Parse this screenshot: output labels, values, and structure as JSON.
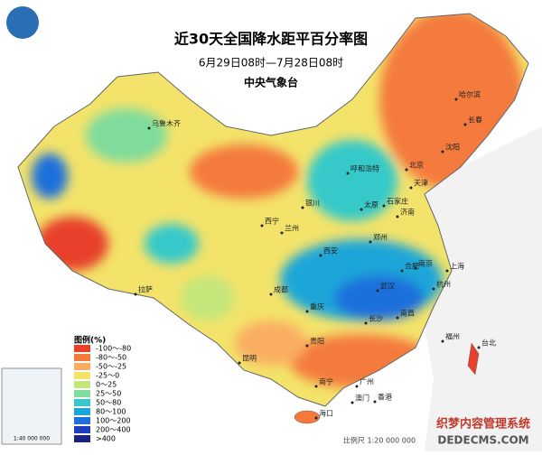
{
  "header": {
    "title": "近30天全国降水距平百分率图",
    "period": "6月29日08时—7月28日08时",
    "issuer": "中央气象台"
  },
  "legend": {
    "title": "图例(%)",
    "items": [
      {
        "label": "-100～-80",
        "color": "#e8402a"
      },
      {
        "label": "-80～-50",
        "color": "#f47a3c"
      },
      {
        "label": "-50～-25",
        "color": "#f9ae62"
      },
      {
        "label": "-25～0",
        "color": "#f3e36a"
      },
      {
        "label": "0～25",
        "color": "#c4e67a"
      },
      {
        "label": "25～50",
        "color": "#7fdc9c"
      },
      {
        "label": "50～80",
        "color": "#35c9c9"
      },
      {
        "label": "80～100",
        "color": "#1ca6d8"
      },
      {
        "label": "100～200",
        "color": "#1f6fdc"
      },
      {
        "label": "200～400",
        "color": "#1c3fc0"
      },
      {
        "label": ">400",
        "color": "#1a237e"
      }
    ]
  },
  "cities": [
    "乌鲁木齐",
    "哈尔滨",
    "长春",
    "沈阳",
    "北京",
    "天津",
    "呼和浩特",
    "石家庄",
    "太原",
    "济南",
    "银川",
    "西宁",
    "兰州",
    "郑州",
    "西安",
    "拉萨",
    "成都",
    "重庆",
    "武汉",
    "合肥",
    "南京",
    "上海",
    "杭州",
    "长沙",
    "南昌",
    "贵阳",
    "昆明",
    "福州",
    "台北",
    "南宁",
    "广州",
    "香港",
    "澳门",
    "海口"
  ],
  "scale": "比例尺 1:20 000 000",
  "inset_scale": "1:40 000 000",
  "watermark": {
    "line1": "织梦内容管理系统",
    "line2": "DEDECMS.COM"
  }
}
